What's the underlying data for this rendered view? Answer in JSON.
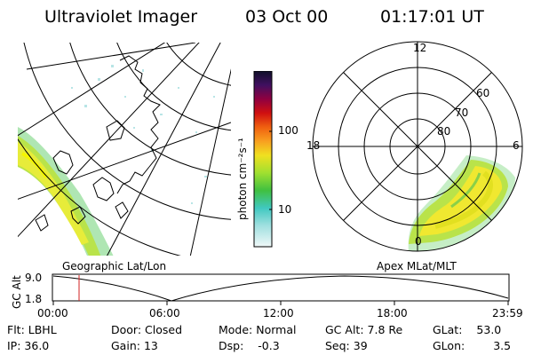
{
  "header": {
    "title": "Ultraviolet Imager",
    "date": "03 Oct 00",
    "time": "01:17:01 UT"
  },
  "colorbar": {
    "unit_label": "photon cm⁻²s⁻¹",
    "tick_labels": [
      "100",
      "10"
    ]
  },
  "polar_plot": {
    "mlt_labels": [
      "12",
      "18",
      "6",
      "0"
    ],
    "mlat_labels": [
      "60",
      "70",
      "80"
    ]
  },
  "panel_labels": {
    "geographic": "Geographic Lat/Lon",
    "apex": "Apex MLat/MLT"
  },
  "altitude_plot": {
    "ylabel": "GC Alt",
    "y_ticks": [
      "9.0",
      "1.8"
    ],
    "x_ticks": [
      "00:00",
      "06:00",
      "12:00",
      "18:00",
      "23:59"
    ],
    "marker_color": "#d02020"
  },
  "status": {
    "filter_label": "Flt:",
    "filter_value": "LBHL",
    "ip_label": "IP:",
    "ip_value": "36.0",
    "door_label": "Door:",
    "door_value": "Closed",
    "gain_label": "Gain:",
    "gain_value": "13",
    "mode_label": "Mode:",
    "mode_value": "Normal",
    "dsp_label": "Dsp:",
    "dsp_value": "-0.3",
    "gcalt_label": "GC Alt:",
    "gcalt_value": "7.8 Re",
    "seq_label": "Seq:",
    "seq_value": "39",
    "glat_label": "GLat:",
    "glat_value": "53.0",
    "glon_label": "GLon:",
    "glon_value": "3.5"
  }
}
